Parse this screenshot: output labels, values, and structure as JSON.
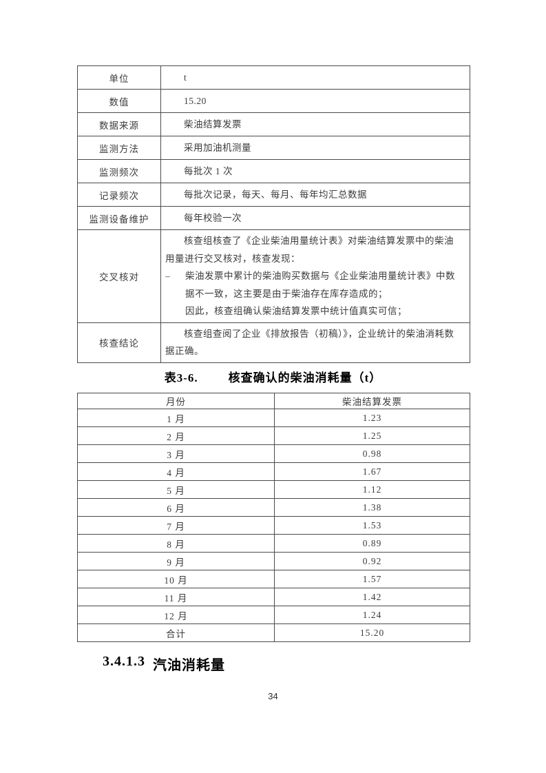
{
  "info_table": {
    "rows": [
      {
        "label": "单位",
        "value": "t"
      },
      {
        "label": "数值",
        "value": "15.20"
      },
      {
        "label": "数据来源",
        "value": "柴油结算发票"
      },
      {
        "label": "监测方法",
        "value": "采用加油机测量"
      },
      {
        "label": "监测频次",
        "value": "每批次 1 次"
      },
      {
        "label": "记录频次",
        "value": "每批次记录，每天、每月、每年均汇总数据"
      },
      {
        "label": "监测设备维护",
        "value": "每年校验一次"
      },
      {
        "label": "交叉核对",
        "lines": [
          {
            "style": "indent",
            "text": "核查组核查了《企业柴油用量统计表》对柴油结算发票中的柴油"
          },
          {
            "style": "flush",
            "text": "用量进行交叉核对，核查发现："
          },
          {
            "style": "bullet",
            "bullet": "–",
            "text": "柴油发票中累计的柴油购买数据与《企业柴油用量统计表》中数"
          },
          {
            "style": "hang",
            "text": "据不一致，这主要是由于柴油存在库存造成的；"
          },
          {
            "style": "hang",
            "text": "因此，核查组确认柴油结算发票中统计值真实可信；"
          }
        ]
      },
      {
        "label": "核查结论",
        "lines": [
          {
            "style": "indent",
            "text": "核查组查阅了企业《排放报告（初稿）》，企业统计的柴油消耗数"
          },
          {
            "style": "flush",
            "text": "据正确。"
          }
        ]
      }
    ]
  },
  "table_caption": {
    "number": "表3-6.",
    "title": "核查确认的柴油消耗量（t）"
  },
  "monthly_table": {
    "headers": [
      "月份",
      "柴油结算发票"
    ],
    "rows": [
      [
        "1 月",
        "1.23"
      ],
      [
        "2 月",
        "1.25"
      ],
      [
        "3 月",
        "0.98"
      ],
      [
        "4 月",
        "1.67"
      ],
      [
        "5 月",
        "1.12"
      ],
      [
        "6 月",
        "1.38"
      ],
      [
        "7 月",
        "1.53"
      ],
      [
        "8 月",
        "0.89"
      ],
      [
        "9 月",
        "0.92"
      ],
      [
        "10 月",
        "1.57"
      ],
      [
        "11 月",
        "1.42"
      ],
      [
        "12 月",
        "1.24"
      ],
      [
        "合计",
        "15.20"
      ]
    ]
  },
  "section_heading": {
    "number": "3.4.1.3",
    "title": "汽油消耗量"
  },
  "page": {
    "number": "34"
  }
}
